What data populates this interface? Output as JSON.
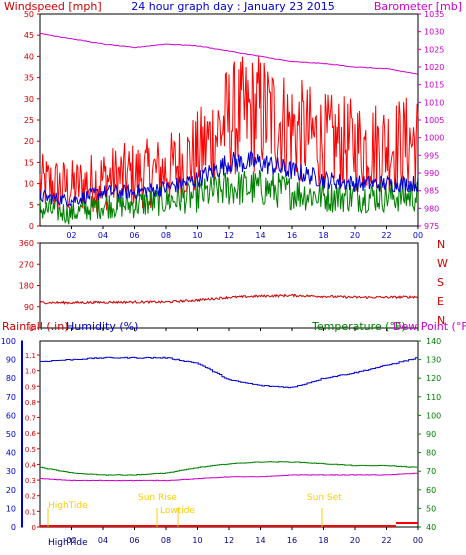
{
  "top": {
    "title": "24 hour graph day : January 23 2015",
    "left_label": "Windspeed [mph]",
    "right_label": "Barometer [mb]",
    "left_ticks": [
      "0",
      "5",
      "10",
      "15",
      "20",
      "25",
      "30",
      "35",
      "40",
      "45",
      "50"
    ],
    "right_ticks": [
      "975",
      "980",
      "985",
      "990",
      "995",
      "1000",
      "1005",
      "1010",
      "1015",
      "1020",
      "1025",
      "1030",
      "1035"
    ],
    "x_ticks": [
      "02",
      "04",
      "06",
      "08",
      "10",
      "12",
      "14",
      "16",
      "18",
      "20",
      "22",
      "00"
    ]
  },
  "mid": {
    "left_ticks": [
      "0",
      "90",
      "180",
      "270",
      "360"
    ],
    "compass": [
      "N",
      "W",
      "S",
      "E",
      "N"
    ],
    "x_ticks": [
      "02",
      "04",
      "06",
      "08",
      "10",
      "12",
      "14",
      "16",
      "18",
      "20",
      "22",
      "00"
    ]
  },
  "bottom": {
    "rain_label": "Rainfall (.in)",
    "humidity_label": "Humidity (%)",
    "temp_label": "Temperature (°F)",
    "dew_label": "Dew Point (°F)",
    "humidity_ticks": [
      "0",
      "10",
      "20",
      "30",
      "40",
      "50",
      "60",
      "70",
      "80",
      "90",
      "100"
    ],
    "rain_ticks": [
      "0",
      "0.1",
      "0.2",
      "0.3",
      "0.4",
      "0.5",
      "0.6",
      "0.7",
      "0.8",
      "0.9",
      "1.0",
      "1.1"
    ],
    "temp_ticks": [
      "40",
      "50",
      "60",
      "70",
      "80",
      "90",
      "100",
      "110",
      "120",
      "130",
      "140"
    ],
    "x_ticks": [
      "02",
      "04",
      "06",
      "08",
      "10",
      "12",
      "14",
      "16",
      "18",
      "20",
      "22",
      "00"
    ],
    "events": {
      "hightide": "HighTide",
      "sunrise": "Sun Rise",
      "lowtide": "Lowtide",
      "sunset": "Sun Set"
    }
  },
  "colors": {
    "wind": "#ff0000",
    "gust_avg": "#0000cc",
    "wind_avg": "#008000",
    "baro": "#cc00cc",
    "direction": "#cc0000",
    "humidity": "#0000cc",
    "temperature": "#008000",
    "dewpoint": "#cc00cc",
    "rain": "#ff0000",
    "events": "#ffcc00"
  },
  "chart_data": [
    {
      "type": "line",
      "title": "24 hour graph day : January 23 2015",
      "xlabel": "",
      "ylabel": "Windspeed [mph]",
      "y2label": "Barometer [mb]",
      "x": [
        "00",
        "02",
        "04",
        "06",
        "08",
        "10",
        "12",
        "14",
        "16",
        "18",
        "20",
        "22",
        "00"
      ],
      "ylim": [
        0,
        50
      ],
      "y2lim": [
        975,
        1035
      ],
      "series": [
        {
          "values": [
            10,
            9,
            11,
            12,
            13,
            17,
            25,
            27,
            23,
            20,
            19,
            19,
            20
          ]
        },
        {
          "values": [
            7,
            6,
            8,
            8,
            9,
            11,
            15,
            15,
            13,
            11,
            10,
            10,
            10
          ]
        },
        {
          "values": [
            4,
            3,
            5,
            5,
            6,
            7,
            9,
            9,
            8,
            7,
            7,
            7,
            7
          ]
        },
        {
          "values": [
            1029.5,
            1028,
            1026.5,
            1025.5,
            1026.5,
            1026,
            1024.5,
            1023,
            1021.5,
            1021,
            1020,
            1019.5,
            1018
          ]
        }
      ]
    },
    {
      "type": "line",
      "xlabel": "",
      "ylabel": "",
      "x": [
        "00",
        "02",
        "04",
        "06",
        "08",
        "10",
        "12",
        "14",
        "16",
        "18",
        "20",
        "22",
        "00"
      ],
      "ylim": [
        0,
        360
      ],
      "series": [
        {
          "values": [
            108,
            107,
            109,
            110,
            110,
            118,
            130,
            135,
            138,
            134,
            130,
            130,
            132
          ]
        }
      ]
    },
    {
      "type": "line",
      "xlabel": "",
      "ylabel": "Humidity (%)",
      "x": [
        "00",
        "02",
        "04",
        "06",
        "08",
        "10",
        "12",
        "14",
        "16",
        "18",
        "20",
        "22",
        "00"
      ],
      "ylim": [
        0,
        100
      ],
      "y2lim": [
        40,
        140
      ],
      "series": [
        {
          "name": "Humidity (%)",
          "values": [
            89,
            90,
            91,
            91,
            91,
            88,
            79,
            76,
            75,
            80,
            83,
            87,
            91
          ]
        },
        {
          "name": "Temperature (°F)",
          "values": [
            72,
            69,
            68,
            68,
            69,
            72,
            74,
            75,
            75,
            74,
            73,
            73,
            72
          ]
        },
        {
          "name": "Dew Point (°F)",
          "values": [
            66,
            65,
            65,
            65,
            65,
            66,
            67,
            67,
            68,
            68,
            68,
            68,
            69
          ]
        },
        {
          "name": "Rainfall (.in)",
          "values": [
            0,
            0,
            0,
            0,
            0,
            0,
            0,
            0,
            0,
            0,
            0,
            0,
            0.02
          ]
        }
      ]
    }
  ]
}
